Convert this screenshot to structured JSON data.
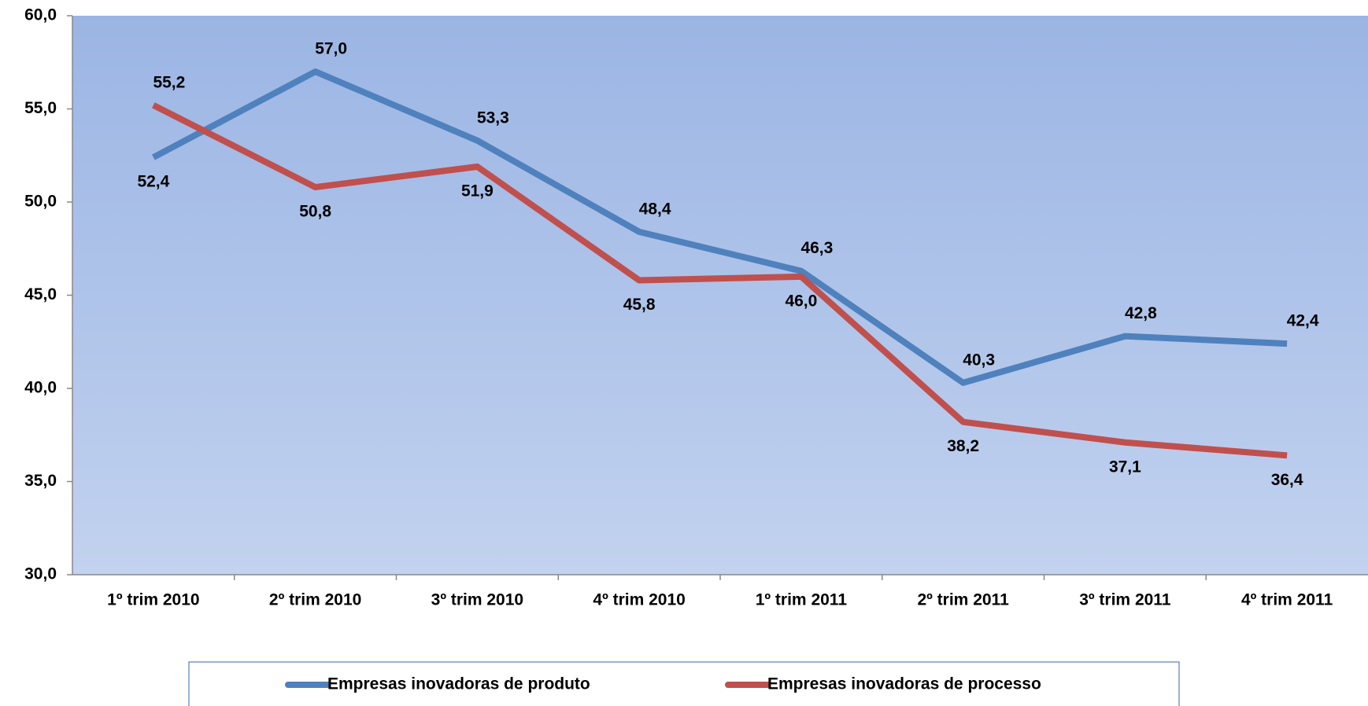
{
  "chart_data": {
    "type": "line",
    "categories": [
      "1º trim 2010",
      "2º trim 2010",
      "3º trim 2010",
      "4º trim 2010",
      "1º trim 2011",
      "2º trim 2011",
      "3º trim 2011",
      "4º trim 2011"
    ],
    "series": [
      {
        "name": "Empresas inovadoras de produto",
        "color": "#4f81bd",
        "values": [
          52.4,
          57.0,
          53.3,
          48.4,
          46.3,
          40.3,
          42.8,
          42.4
        ],
        "value_labels": [
          "52,4",
          "57,0",
          "53,3",
          "48,4",
          "46,3",
          "40,3",
          "42,8",
          "42,4"
        ]
      },
      {
        "name": "Empresas inovadoras de processo",
        "color": "#c0504d",
        "values": [
          55.2,
          50.8,
          51.9,
          45.8,
          46.0,
          38.2,
          37.1,
          36.4
        ],
        "value_labels": [
          "55,2",
          "50,8",
          "51,9",
          "45,8",
          "46,0",
          "38,2",
          "37,1",
          "36,4"
        ]
      }
    ],
    "ylim": [
      30,
      60
    ],
    "yticks": [
      {
        "value": 30,
        "label": "30,0"
      },
      {
        "value": 35,
        "label": "35,0"
      },
      {
        "value": 40,
        "label": "40,0"
      },
      {
        "value": 45,
        "label": "45,0"
      },
      {
        "value": 50,
        "label": "50,0"
      },
      {
        "value": 55,
        "label": "55,0"
      },
      {
        "value": 60,
        "label": "60,0"
      }
    ],
    "legend": "bottom"
  }
}
